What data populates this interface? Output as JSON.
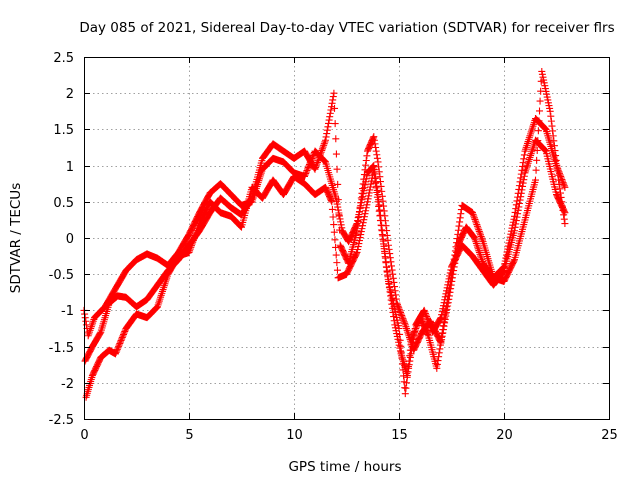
{
  "chart_data": {
    "type": "scatter",
    "title": "Day 085 of 2021, Sidereal Day-to-day VTEC variation (SDTVAR) for receiver flrs",
    "xlabel": "GPS time / hours",
    "ylabel": "SDTVAR / TECUs",
    "xlim": [
      0,
      25
    ],
    "ylim": [
      -2.5,
      2.5
    ],
    "xticks": [
      0,
      5,
      10,
      15,
      20,
      25
    ],
    "yticks": [
      -2.5,
      -2,
      -1.5,
      -1,
      -0.5,
      0,
      0.5,
      1,
      1.5,
      2,
      2.5
    ],
    "xtick_labels": [
      "0",
      "5",
      "10",
      "15",
      "20",
      "25"
    ],
    "ytick_labels": [
      "-2.5",
      "-2",
      "-1.5",
      "-1",
      "-0.5",
      "0",
      "0.5",
      "1",
      "1.5",
      "2",
      "2.5"
    ],
    "grid": true,
    "marker": "+",
    "color": "#ff0000",
    "series": [
      {
        "points": [
          [
            0.0,
            -1.0
          ],
          [
            0.2,
            -1.35
          ],
          [
            0.5,
            -1.1
          ],
          [
            1.0,
            -0.95
          ],
          [
            1.5,
            -0.7
          ],
          [
            2.0,
            -0.45
          ],
          [
            2.5,
            -0.3
          ],
          [
            3.0,
            -0.22
          ],
          [
            3.5,
            -0.28
          ],
          [
            4.0,
            -0.38
          ],
          [
            4.5,
            -0.2
          ],
          [
            5.0,
            0.05
          ],
          [
            5.5,
            0.35
          ],
          [
            6.0,
            0.62
          ],
          [
            6.5,
            0.75
          ],
          [
            7.0,
            0.6
          ],
          [
            7.5,
            0.45
          ],
          [
            8.0,
            0.5
          ],
          [
            8.5,
            0.95
          ],
          [
            9.0,
            1.1
          ],
          [
            9.5,
            1.05
          ],
          [
            10.0,
            0.9
          ],
          [
            10.5,
            0.85
          ],
          [
            11.0,
            1.2
          ],
          [
            11.5,
            1.05
          ],
          [
            12.0,
            0.55
          ],
          [
            12.3,
            0.1
          ],
          [
            12.6,
            -0.05
          ],
          [
            13.0,
            0.2
          ],
          [
            13.5,
            0.9
          ],
          [
            13.8,
            1.0
          ],
          [
            14.0,
            0.6
          ],
          [
            14.4,
            -0.4
          ],
          [
            14.8,
            -1.2
          ],
          [
            15.1,
            -1.6
          ],
          [
            15.4,
            -1.9
          ],
          [
            15.8,
            -1.2
          ],
          [
            16.2,
            -1.0
          ],
          [
            16.6,
            -1.3
          ],
          [
            17.0,
            -1.1
          ],
          [
            17.5,
            -0.4
          ],
          [
            18.0,
            -0.1
          ],
          [
            18.5,
            -0.25
          ],
          [
            19.0,
            -0.45
          ],
          [
            19.5,
            -0.65
          ],
          [
            20.0,
            -0.45
          ],
          [
            20.5,
            0.1
          ],
          [
            21.0,
            0.9
          ],
          [
            21.5,
            1.35
          ],
          [
            22.0,
            1.2
          ],
          [
            22.5,
            0.6
          ],
          [
            22.9,
            0.35
          ]
        ]
      },
      {
        "points": [
          [
            0.05,
            -1.7
          ],
          [
            0.4,
            -1.5
          ],
          [
            0.8,
            -1.3
          ],
          [
            1.2,
            -0.9
          ],
          [
            1.6,
            -0.8
          ],
          [
            2.0,
            -0.82
          ],
          [
            2.5,
            -0.95
          ],
          [
            3.0,
            -0.85
          ],
          [
            3.5,
            -0.65
          ],
          [
            4.0,
            -0.45
          ],
          [
            4.5,
            -0.3
          ],
          [
            5.0,
            -0.1
          ],
          [
            5.5,
            0.1
          ],
          [
            6.0,
            0.35
          ],
          [
            6.5,
            0.55
          ],
          [
            7.0,
            0.42
          ],
          [
            7.5,
            0.32
          ],
          [
            8.0,
            0.55
          ],
          [
            8.5,
            1.1
          ],
          [
            9.0,
            1.3
          ],
          [
            9.5,
            1.2
          ],
          [
            10.0,
            1.1
          ],
          [
            10.5,
            1.2
          ],
          [
            11.0,
            0.95
          ],
          [
            11.5,
            1.35
          ],
          [
            11.9,
            2.0
          ],
          [
            12.2,
            -0.1
          ],
          [
            12.6,
            -0.35
          ],
          [
            13.0,
            0.1
          ],
          [
            13.5,
            1.2
          ],
          [
            13.8,
            1.4
          ],
          [
            14.0,
            1.05
          ],
          [
            14.5,
            -0.1
          ],
          [
            14.9,
            -0.9
          ],
          [
            15.3,
            -1.2
          ],
          [
            15.7,
            -1.55
          ],
          [
            16.1,
            -1.3
          ],
          [
            16.5,
            -1.15
          ],
          [
            17.0,
            -1.45
          ],
          [
            17.4,
            -0.8
          ],
          [
            17.8,
            -0.1
          ],
          [
            18.2,
            0.15
          ],
          [
            18.6,
            0.0
          ],
          [
            19.0,
            -0.35
          ],
          [
            19.5,
            -0.55
          ],
          [
            20.0,
            -0.4
          ],
          [
            20.5,
            0.3
          ],
          [
            21.0,
            1.2
          ],
          [
            21.5,
            1.65
          ],
          [
            22.0,
            1.5
          ],
          [
            22.5,
            1.0
          ],
          [
            22.9,
            0.7
          ]
        ]
      },
      {
        "points": [
          [
            0.1,
            -2.2
          ],
          [
            0.4,
            -1.9
          ],
          [
            0.8,
            -1.65
          ],
          [
            1.2,
            -1.55
          ],
          [
            1.5,
            -1.6
          ],
          [
            2.0,
            -1.25
          ],
          [
            2.5,
            -1.05
          ],
          [
            3.0,
            -1.1
          ],
          [
            3.5,
            -0.95
          ],
          [
            4.0,
            -0.5
          ],
          [
            4.5,
            -0.25
          ],
          [
            5.0,
            -0.2
          ],
          [
            5.5,
            0.2
          ],
          [
            6.0,
            0.5
          ],
          [
            6.5,
            0.35
          ],
          [
            7.0,
            0.3
          ],
          [
            7.5,
            0.15
          ],
          [
            8.0,
            0.7
          ],
          [
            8.5,
            0.55
          ],
          [
            9.0,
            0.8
          ],
          [
            9.5,
            0.6
          ],
          [
            10.0,
            0.85
          ],
          [
            10.5,
            0.75
          ],
          [
            11.0,
            0.6
          ],
          [
            11.5,
            0.7
          ],
          [
            11.8,
            0.5
          ],
          [
            12.1,
            -0.55
          ],
          [
            12.5,
            -0.5
          ],
          [
            13.0,
            -0.2
          ],
          [
            13.5,
            0.5
          ],
          [
            13.8,
            0.95
          ],
          [
            14.0,
            0.5
          ],
          [
            14.5,
            -0.6
          ],
          [
            15.0,
            -1.25
          ],
          [
            15.3,
            -2.15
          ],
          [
            15.6,
            -1.4
          ],
          [
            16.0,
            -1.1
          ],
          [
            16.4,
            -1.35
          ],
          [
            16.8,
            -1.8
          ],
          [
            17.2,
            -1.05
          ],
          [
            17.6,
            -0.35
          ],
          [
            18.0,
            0.45
          ],
          [
            18.5,
            0.35
          ],
          [
            19.0,
            -0.05
          ],
          [
            19.5,
            -0.55
          ],
          [
            20.0,
            -0.6
          ],
          [
            20.5,
            -0.3
          ],
          [
            21.0,
            0.25
          ],
          [
            21.5,
            0.8
          ],
          [
            21.8,
            2.3
          ],
          [
            22.2,
            1.75
          ],
          [
            22.6,
            0.8
          ],
          [
            22.9,
            0.2
          ]
        ]
      }
    ]
  }
}
